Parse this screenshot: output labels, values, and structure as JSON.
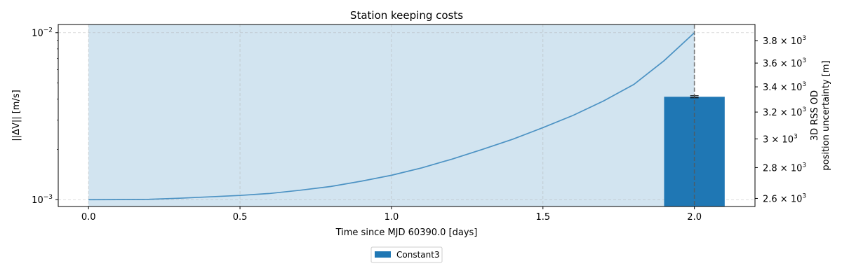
{
  "chart_data": {
    "type": "line",
    "title": "Station keeping costs",
    "xlabel": "Time since MJD 60390.0 [days]",
    "ylabel": "||ΔV|| [m/s]",
    "y2label": [
      "3D RSS OD",
      "position uncertainty [m]"
    ],
    "xlim": [
      -0.1,
      2.2
    ],
    "ylim": [
      0.00091,
      0.0112
    ],
    "yscale": "log",
    "y2lim": [
      2550,
      3950
    ],
    "y2scale": "log",
    "x_ticks": [
      0.0,
      0.5,
      1.0,
      1.5,
      2.0
    ],
    "x_tick_labels": [
      "0.0",
      "0.5",
      "1.0",
      "1.5",
      "2.0"
    ],
    "y_ticks": [
      0.001,
      0.01
    ],
    "y2_ticks": [
      {
        "value": 2600,
        "mantissa": "2.6"
      },
      {
        "value": 2800,
        "mantissa": "2.8"
      },
      {
        "value": 3000,
        "mantissa": "3"
      },
      {
        "value": 3200,
        "mantissa": "3.2"
      },
      {
        "value": 3400,
        "mantissa": "3.4"
      },
      {
        "value": 3600,
        "mantissa": "3.6"
      },
      {
        "value": 3800,
        "mantissa": "3.8"
      }
    ],
    "grid": true,
    "series": [
      {
        "x": [
          0.0,
          0.1,
          0.2,
          0.3,
          0.4,
          0.5,
          0.6,
          0.7,
          0.8,
          0.9,
          1.0,
          1.1,
          1.2,
          1.3,
          1.4,
          1.5,
          1.6,
          1.7,
          1.8,
          1.9,
          2.0
        ],
        "values": [
          0.001,
          0.001001,
          0.001005,
          0.00102,
          0.00104,
          0.00106,
          0.00109,
          0.00114,
          0.0012,
          0.00129,
          0.0014,
          0.00155,
          0.00175,
          0.002,
          0.0023,
          0.0027,
          0.0032,
          0.0039,
          0.0049,
          0.0068,
          0.01
        ],
        "color": "#1f77b4"
      }
    ],
    "shaded_region": {
      "x_start": 0.0,
      "x_end": 2.0,
      "color": "#1f77b4"
    },
    "bar": {
      "label": "Constant3",
      "x": 2.0,
      "width": 0.2,
      "value": 3320,
      "error": 8,
      "color": "#1f77b4",
      "axis": "right"
    },
    "vline": {
      "x": 2.0
    },
    "legend": {
      "placement": "below",
      "entries": [
        "Constant3"
      ]
    }
  }
}
